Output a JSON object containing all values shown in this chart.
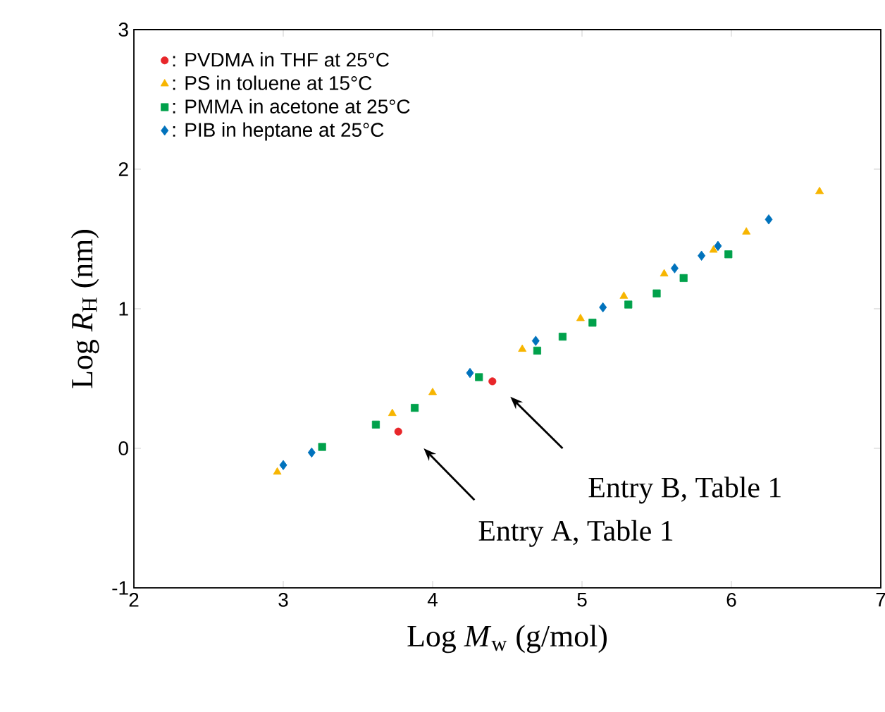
{
  "chart_data": {
    "type": "scatter",
    "xlabel": "Log *M*$_{w}$ (g/mol)",
    "ylabel": "Log *R*$_{H}$ (nm)",
    "xlim": [
      2,
      7
    ],
    "ylim": [
      -1,
      3
    ],
    "xticks": [
      2,
      3,
      4,
      5,
      6,
      7
    ],
    "yticks": [
      -1,
      0,
      1,
      2,
      3
    ],
    "grid": false,
    "legend": "top left",
    "series": [
      {
        "name": ": PVDMA in THF at 25°C",
        "color": "#e8262a",
        "marker": "circle",
        "x": [
          3.77,
          4.4
        ],
        "values": [
          0.12,
          0.48
        ]
      },
      {
        "name": ": PS in toluene at 15°C",
        "color": "#f7b500",
        "marker": "triangle",
        "x": [
          2.96,
          3.73,
          4.0,
          4.6,
          4.99,
          5.28,
          5.55,
          5.88,
          6.1,
          6.59
        ],
        "values": [
          -0.17,
          0.25,
          0.4,
          0.71,
          0.93,
          1.09,
          1.25,
          1.42,
          1.55,
          1.84
        ]
      },
      {
        "name": ": PMMA in acetone at 25°C",
        "color": "#00a14b",
        "marker": "square",
        "x": [
          3.26,
          3.62,
          3.88,
          4.31,
          4.7,
          4.87,
          5.07,
          5.31,
          5.5,
          5.68,
          5.98
        ],
        "values": [
          0.01,
          0.17,
          0.29,
          0.51,
          0.7,
          0.8,
          0.9,
          1.03,
          1.11,
          1.22,
          1.39
        ]
      },
      {
        "name": ": PIB in heptane at 25°C",
        "color": "#0072bc",
        "marker": "diamond",
        "x": [
          3.0,
          3.19,
          4.25,
          4.69,
          5.14,
          5.62,
          5.8,
          5.91,
          6.25
        ],
        "values": [
          -0.12,
          -0.03,
          0.54,
          0.77,
          1.01,
          1.29,
          1.38,
          1.45,
          1.64
        ]
      }
    ],
    "annotations": [
      "Entry A, Table 1",
      "Entry B, Table 1"
    ]
  }
}
